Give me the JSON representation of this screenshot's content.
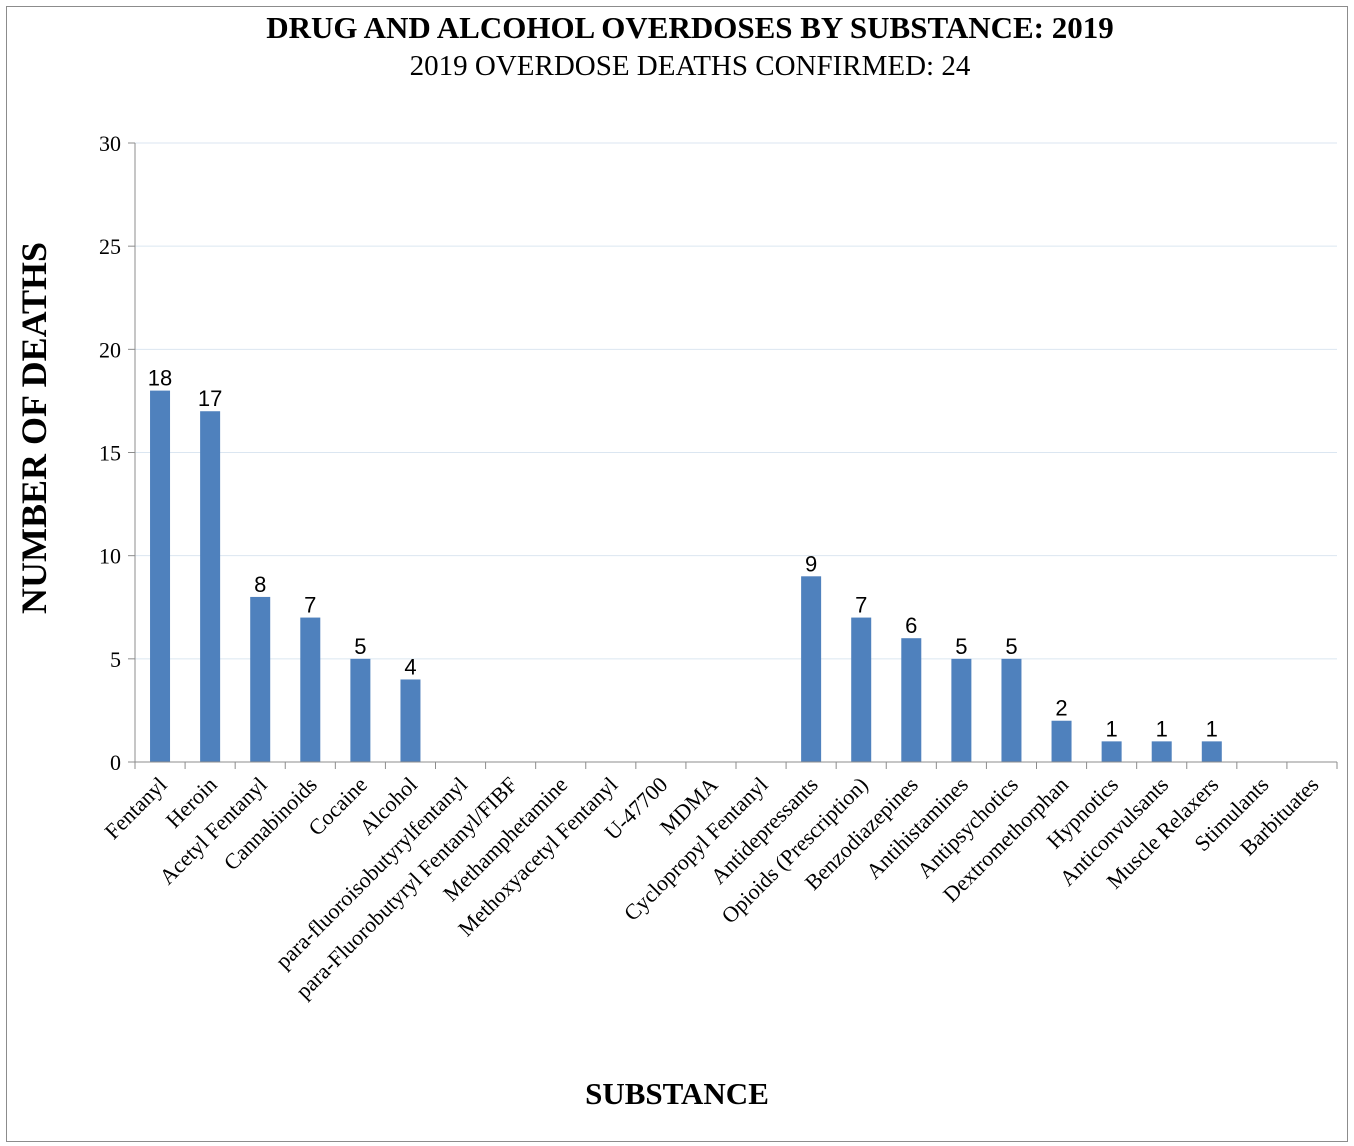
{
  "chart_data": {
    "type": "bar",
    "title": "DRUG AND ALCOHOL OVERDOSES BY SUBSTANCE: 2019",
    "subtitle": "2019 OVERDOSE DEATHS CONFIRMED: 24",
    "xlabel": "SUBSTANCE",
    "ylabel": "NUMBER OF DEATHS",
    "ylim": [
      0,
      30
    ],
    "yticks": [
      0,
      5,
      10,
      15,
      20,
      25,
      30
    ],
    "grid": true,
    "legend": "none",
    "bar_color": "#4f81bd",
    "categories": [
      "Fentanyl",
      "Heroin",
      "Acetyl Fentanyl",
      "Cannabinoids",
      "Cocaine",
      "Alcohol",
      "para-fluoroisobutyrylfentanyl",
      "para-Fluorobutyryl Fentanyl/FIBF",
      "Methamphetamine",
      "Methoxyacetyl Fentanyl",
      "U-47700",
      "MDMA",
      "Cyclopropyl Fentanyl",
      "Antidepressants",
      "Opioids (Prescription)",
      "Benzodiazepines",
      "Antihistamines",
      "Antipsychotics",
      "Dextromethorphan",
      "Hypnotics",
      "Anticonvulsants",
      "Muscle Relaxers",
      "Stimulants",
      "Barbituates"
    ],
    "values": [
      18,
      17,
      8,
      7,
      5,
      4,
      0,
      0,
      0,
      0,
      0,
      0,
      0,
      9,
      7,
      6,
      5,
      5,
      2,
      1,
      1,
      1,
      0,
      0
    ],
    "data_labels": [
      "18",
      "17",
      "8",
      "7",
      "5",
      "4",
      "",
      "",
      "",
      "",
      "",
      "",
      "",
      "9",
      "7",
      "6",
      "5",
      "5",
      "2",
      "1",
      "1",
      "1",
      "",
      ""
    ]
  }
}
